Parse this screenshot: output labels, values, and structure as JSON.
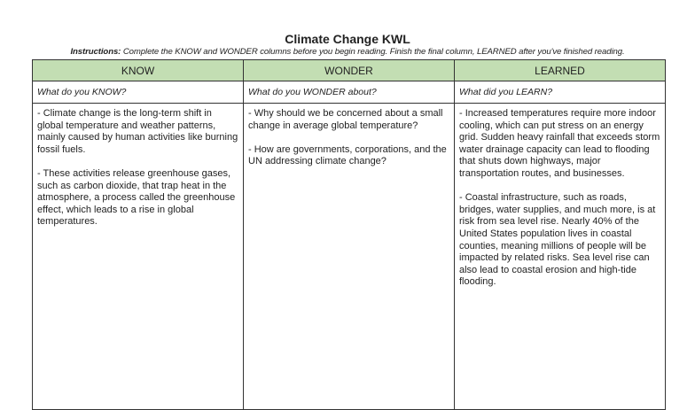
{
  "title": "Climate Change KWL",
  "instructions": {
    "label": "Instructions:",
    "text": " Complete the KNOW and WONDER columns before you begin reading.  Finish the final column, LEARNED after you've finished reading."
  },
  "header_color": "#c3deb3",
  "columns": [
    {
      "header": "KNOW",
      "prompt": "What do you KNOW?",
      "entries": [
        "- Climate change is the long-term shift in global temperature and weather patterns, mainly caused by human activities like burning fossil fuels.",
        "- These activities release greenhouse gases, such as carbon dioxide, that trap heat in the atmosphere, a process called the greenhouse effect, which leads to a rise in global temperatures."
      ]
    },
    {
      "header": "WONDER",
      "prompt": "What do you WONDER about?",
      "entries": [
        "- Why should we be concerned about a small change in average global temperature?",
        "- How are governments, corporations, and the UN addressing climate change?"
      ]
    },
    {
      "header": "LEARNED",
      "prompt": "What did you LEARN?",
      "entries": [
        "- Increased temperatures require more indoor cooling, which can put stress on an energy grid. Sudden heavy rainfall that exceeds storm water drainage capacity can lead to flooding that shuts down highways, major transportation routes, and businesses.",
        "- Coastal infrastructure, such as roads, bridges, water supplies, and much more, is at risk from sea level rise. Nearly 40% of the United States population lives in coastal counties, meaning millions of people will be impacted by related risks. Sea level rise can also lead to coastal erosion and high-tide flooding."
      ]
    }
  ]
}
